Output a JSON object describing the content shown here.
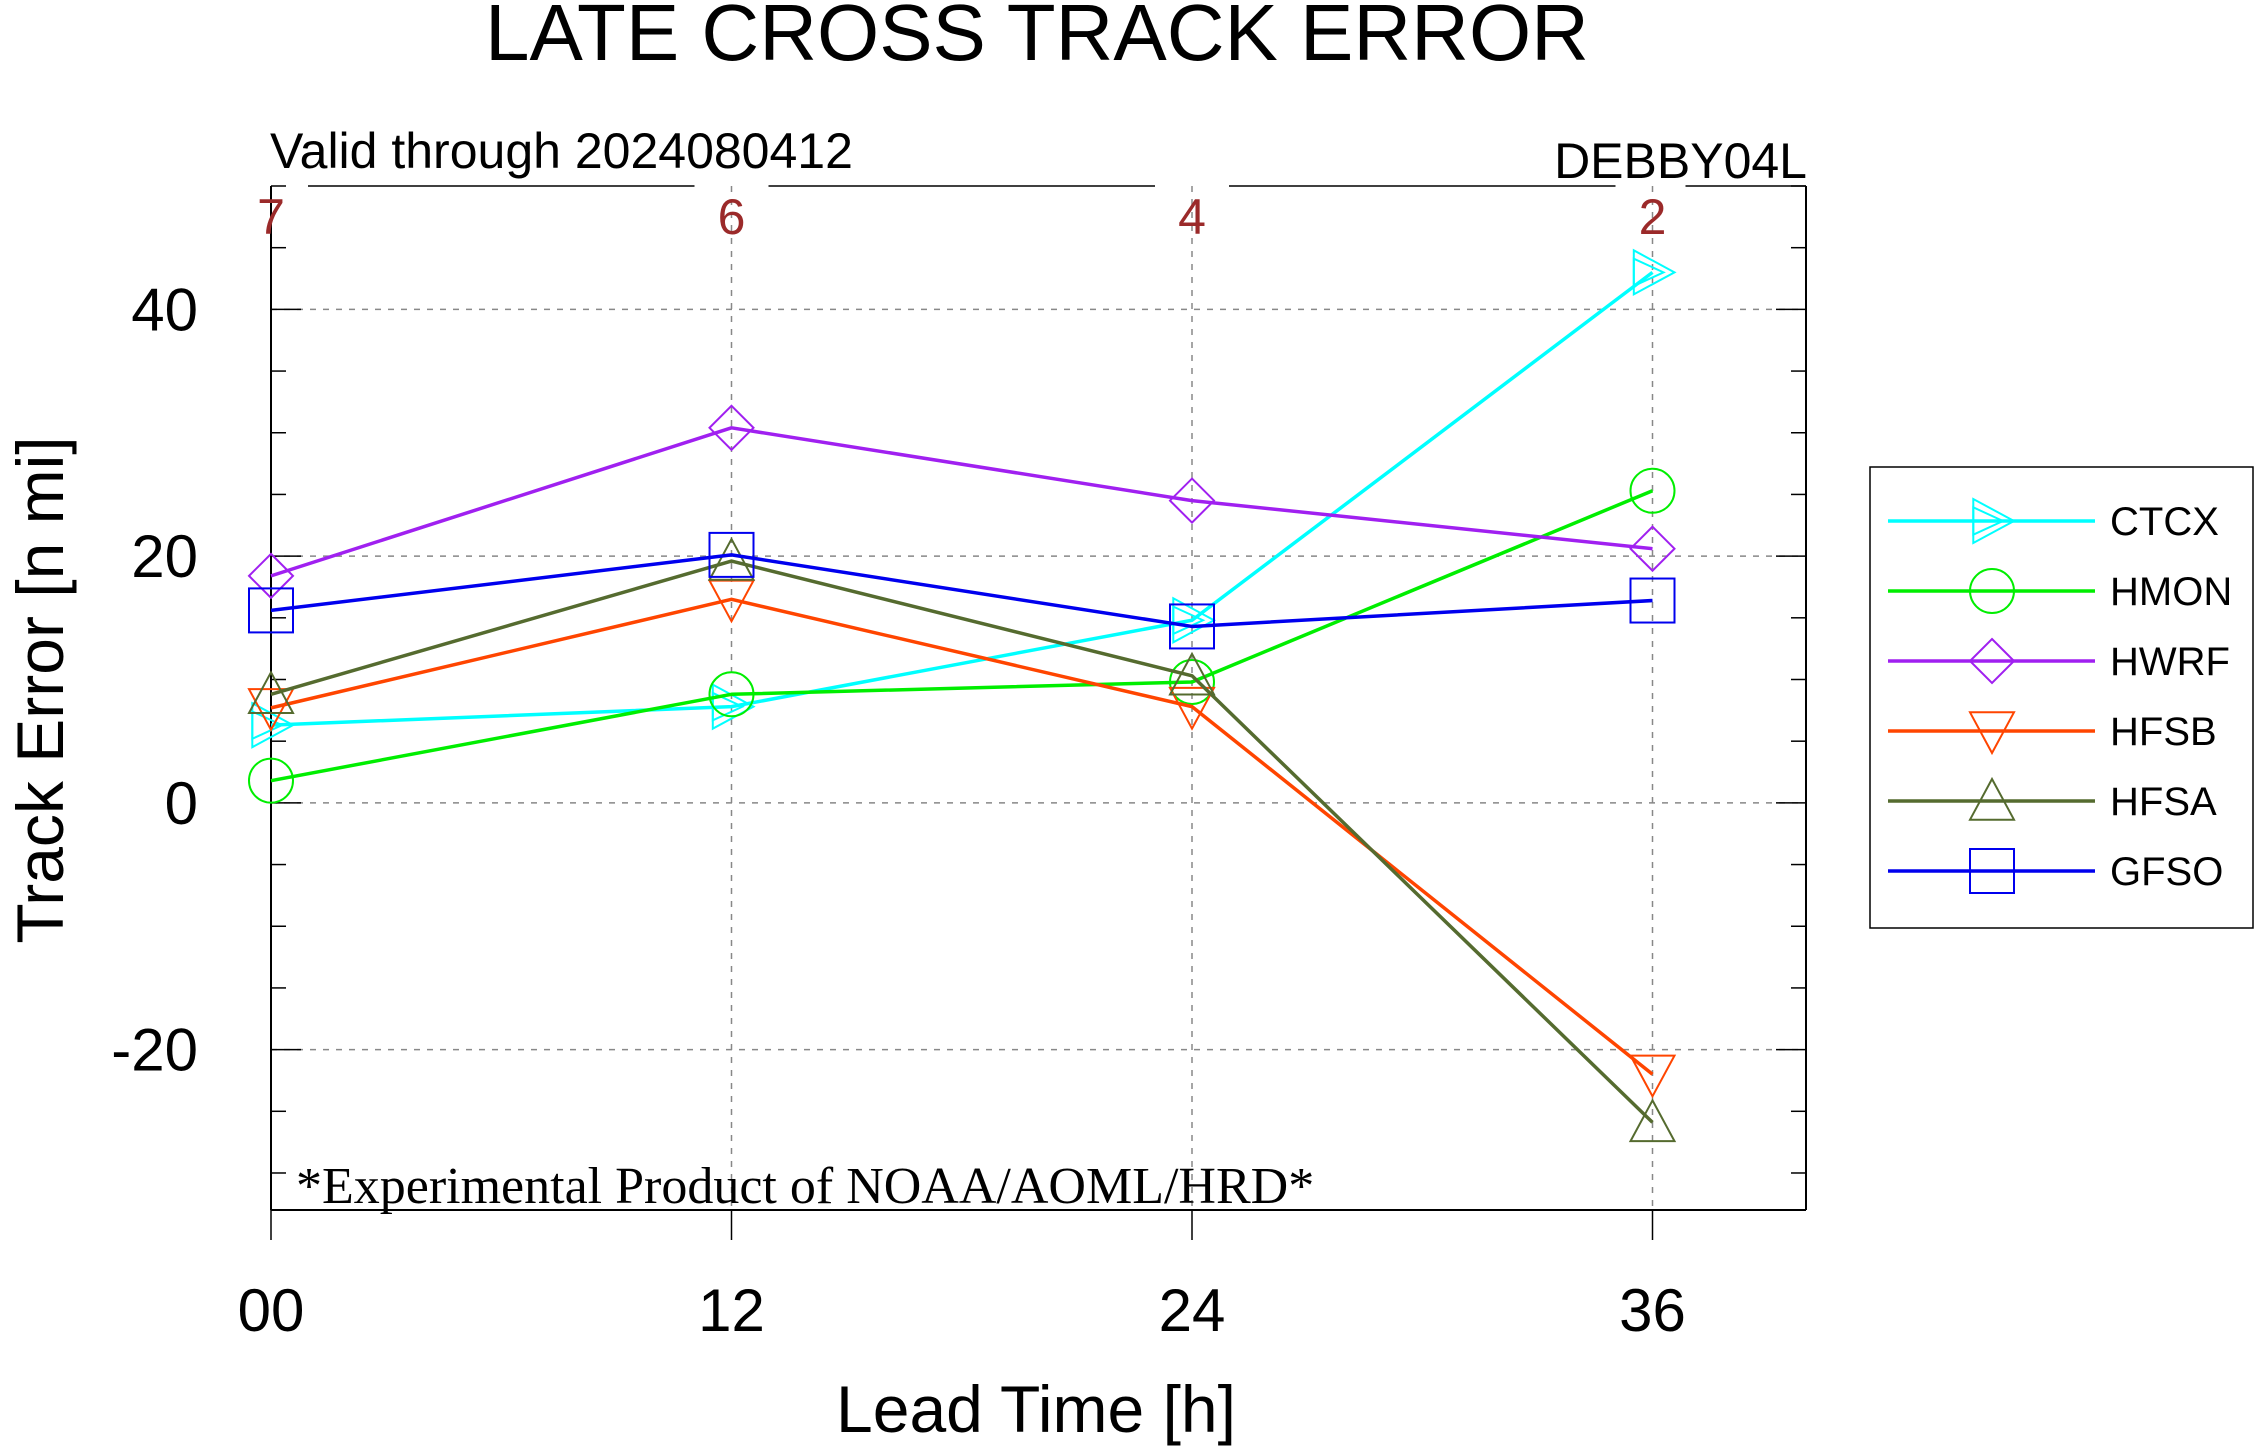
{
  "chart_data": {
    "type": "line",
    "title": "LATE CROSS TRACK ERROR",
    "subtitle_left": "Valid through 2024080412",
    "subtitle_right": "DEBBY04L",
    "xlabel": "Lead Time [h]",
    "ylabel": "Track Error [n mi]",
    "x": [
      0,
      12,
      24,
      36
    ],
    "x_tick_labels": [
      "00",
      "12",
      "24",
      "36"
    ],
    "y_ticks": [
      -20,
      0,
      20,
      40
    ],
    "y_tick_labels": [
      "-20",
      "0",
      "20",
      "40"
    ],
    "xlim": [
      0,
      40
    ],
    "ylim": [
      -33,
      50
    ],
    "case_counts": [
      "7",
      "6",
      "4",
      "2"
    ],
    "grid": true,
    "legend_position": "right",
    "watermark": "*Experimental Product of NOAA/AOML/HRD*",
    "series": [
      {
        "name": "CTCX",
        "color": "#00ffff",
        "marker": "triangle-right",
        "values": [
          6.3,
          7.8,
          14.8,
          43.0
        ]
      },
      {
        "name": "HMON",
        "color": "#00ee00",
        "marker": "circle",
        "values": [
          1.8,
          8.8,
          9.8,
          25.3
        ]
      },
      {
        "name": "HWRF",
        "color": "#a020f0",
        "marker": "diamond",
        "values": [
          18.4,
          30.4,
          24.5,
          20.6
        ]
      },
      {
        "name": "HFSB",
        "color": "#ff4500",
        "marker": "triangle-down",
        "values": [
          7.7,
          16.5,
          7.8,
          -22.0
        ]
      },
      {
        "name": "HFSA",
        "color": "#556b2f",
        "marker": "triangle-up",
        "values": [
          8.8,
          19.6,
          10.3,
          -25.9
        ]
      },
      {
        "name": "GFSO",
        "color": "#0000ee",
        "marker": "square",
        "values": [
          15.6,
          20.1,
          14.3,
          16.4
        ]
      }
    ]
  }
}
